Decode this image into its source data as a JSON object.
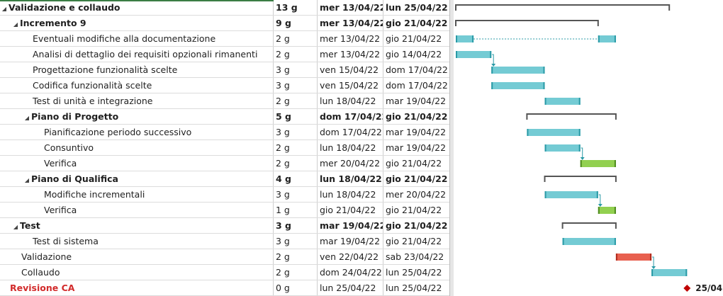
{
  "tasks": [
    {
      "name": "Validazione e collaudo",
      "duration": "13 g",
      "start": "mer 13/04/22",
      "end": "lun 25/04/22",
      "level": 0,
      "summary": true,
      "collapse": true,
      "style": "bold"
    },
    {
      "name": "Incremento 9",
      "duration": "9 g",
      "start": "mer 13/04/22",
      "end": "gio 21/04/22",
      "level": 1,
      "summary": true,
      "collapse": true,
      "style": "bold"
    },
    {
      "name": "Eventuali modifiche alla documentazione",
      "duration": "2 g",
      "start": "mer 13/04/22",
      "end": "gio 21/04/22",
      "level": 2
    },
    {
      "name": "Analisi di dettaglio dei requisiti opzionali rimanenti",
      "duration": "2 g",
      "start": "mer 13/04/22",
      "end": "gio 14/04/22",
      "level": 2
    },
    {
      "name": "Progettazione funzionalità scelte",
      "duration": "3 g",
      "start": "ven 15/04/22",
      "end": "dom 17/04/22",
      "level": 2
    },
    {
      "name": "Codifica funzionalità scelte",
      "duration": "3 g",
      "start": "ven 15/04/22",
      "end": "dom 17/04/22",
      "level": 2
    },
    {
      "name": "Test di unità e integrazione",
      "duration": "2 g",
      "start": "lun 18/04/22",
      "end": "mar 19/04/22",
      "level": 2
    },
    {
      "name": "Piano di Progetto",
      "duration": "5 g",
      "start": "dom 17/04/22",
      "end": "gio 21/04/22",
      "level": 2,
      "summary": true,
      "collapse": true,
      "style": "bold"
    },
    {
      "name": "Pianificazione periodo successivo",
      "duration": "3 g",
      "start": "dom 17/04/22",
      "end": "mar 19/04/22",
      "level": 3
    },
    {
      "name": "Consuntivo",
      "duration": "2 g",
      "start": "lun 18/04/22",
      "end": "mar 19/04/22",
      "level": 3
    },
    {
      "name": "Verifica",
      "duration": "2 g",
      "start": "mer 20/04/22",
      "end": "gio 21/04/22",
      "level": 3
    },
    {
      "name": "Piano di Qualifica",
      "duration": "4 g",
      "start": "lun 18/04/22",
      "end": "gio 21/04/22",
      "level": 2,
      "summary": true,
      "collapse": true,
      "style": "bold"
    },
    {
      "name": "Modifiche incrementali",
      "duration": "3 g",
      "start": "lun 18/04/22",
      "end": "mer 20/04/22",
      "level": 3
    },
    {
      "name": "Verifica",
      "duration": "1 g",
      "start": "gio 21/04/22",
      "end": "gio 21/04/22",
      "level": 3
    },
    {
      "name": "Test",
      "duration": "3 g",
      "start": "mar 19/04/22",
      "end": "gio 21/04/22",
      "level": 1,
      "summary": true,
      "collapse": true,
      "style": "bold"
    },
    {
      "name": "Test di sistema",
      "duration": "3 g",
      "start": "mar 19/04/22",
      "end": "gio 21/04/22",
      "level": 2
    },
    {
      "name": "Validazione",
      "duration": "2 g",
      "start": "ven 22/04/22",
      "end": "sab 23/04/22",
      "level": 1
    },
    {
      "name": "Collaudo",
      "duration": "2 g",
      "start": "dom 24/04/22",
      "end": "lun 25/04/22",
      "level": 1
    },
    {
      "name": "Revisione CA",
      "duration": "0 g",
      "start": "lun 25/04/22",
      "end": "lun 25/04/22",
      "level": 0,
      "milestone": true,
      "style": "red"
    }
  ],
  "gantt": {
    "timeline_start_day": 13,
    "bars": [
      {
        "type": "summary",
        "from": 13,
        "to": 25
      },
      {
        "type": "summary",
        "from": 13,
        "to": 21
      },
      {
        "type": "split",
        "segments": [
          [
            13,
            14
          ],
          [
            21,
            22
          ]
        ]
      },
      {
        "type": "task",
        "from": 13,
        "to": 15,
        "link_to_next": true
      },
      {
        "type": "task",
        "from": 15,
        "to": 18
      },
      {
        "type": "task",
        "from": 15,
        "to": 18
      },
      {
        "type": "task",
        "from": 18,
        "to": 20
      },
      {
        "type": "summary",
        "from": 17,
        "to": 22
      },
      {
        "type": "task",
        "from": 17,
        "to": 20
      },
      {
        "type": "task",
        "from": 18,
        "to": 20,
        "link_to_next": true
      },
      {
        "type": "green",
        "from": 20,
        "to": 22
      },
      {
        "type": "summary",
        "from": 18,
        "to": 22
      },
      {
        "type": "task",
        "from": 18,
        "to": 21,
        "link_to_next": true
      },
      {
        "type": "green",
        "from": 21,
        "to": 22
      },
      {
        "type": "summary",
        "from": 19,
        "to": 22
      },
      {
        "type": "task",
        "from": 19,
        "to": 22
      },
      {
        "type": "red",
        "from": 22,
        "to": 24,
        "link_to_next": true
      },
      {
        "type": "task",
        "from": 24,
        "to": 26
      },
      {
        "type": "milestone",
        "at": 26,
        "label": "25/04"
      }
    ]
  },
  "colors": {
    "task": "#74cbd4",
    "task_edge": "#2a9aa6",
    "green": "#92d050",
    "green_edge": "#4e8a1e",
    "red": "#e8604f",
    "red_edge": "#b02a1c",
    "summary": "#555555",
    "milestone": "#c00000",
    "link": "#2a9aa6"
  }
}
